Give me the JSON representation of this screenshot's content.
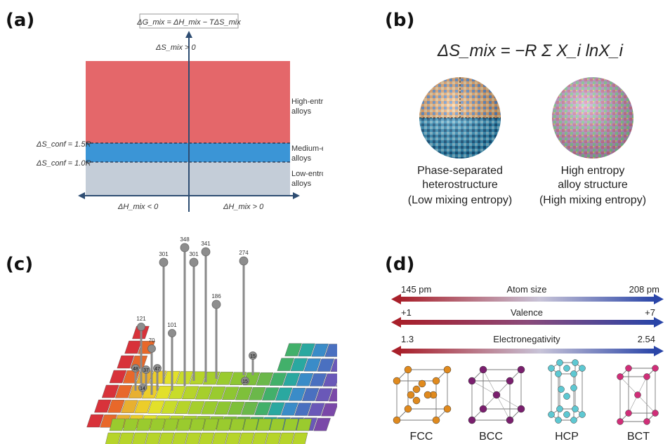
{
  "labels": {
    "a": "(a)",
    "b": "(b)",
    "c": "(c)",
    "d": "(d)"
  },
  "panel_a": {
    "formula_gmix": "ΔG_mix = ΔH_mix − TΔS_mix",
    "smix_label": "ΔS_mix > 0",
    "high_entropy": [
      "High-entropy",
      "alloys"
    ],
    "medium_entropy": [
      "Medium-entropy",
      "alloys"
    ],
    "low_entropy": [
      "Low-entropy",
      "alloys"
    ],
    "sconf_high": "ΔS_conf = 1.5R",
    "sconf_low": "ΔS_conf = 1.0R",
    "hmix_neg": "ΔH_mix < 0",
    "hmix_pos": "ΔH_mix > 0",
    "colors": {
      "high": "#e4676a",
      "medium": "#3b95d6",
      "low": "#c4cdd8",
      "axis": "#2e4d72"
    }
  },
  "panel_b": {
    "formula": "ΔS_mix = −R Σ X_i lnX_i",
    "left_caption": [
      "Phase-separated",
      "heterostructure",
      "(Low mixing entropy)"
    ],
    "right_caption": [
      "High entropy",
      "alloy structure",
      "(High mixing entropy)"
    ]
  },
  "panel_c": {
    "pins": [
      {
        "value": "348"
      },
      {
        "value": "341"
      },
      {
        "value": "301"
      },
      {
        "value": "301"
      },
      {
        "value": "274"
      },
      {
        "value": "186"
      },
      {
        "value": "121"
      },
      {
        "value": "101"
      },
      {
        "value": "70"
      },
      {
        "value": "48"
      },
      {
        "value": "37"
      },
      {
        "value": "47"
      },
      {
        "value": "14"
      },
      {
        "value": "15"
      },
      {
        "value": "15"
      }
    ]
  },
  "panel_d": {
    "atom_size": {
      "label": "Atom size",
      "left": "145 pm",
      "right": "208 pm"
    },
    "valence": {
      "label": "Valence",
      "left": "+1",
      "right": "+7"
    },
    "electronegativity": {
      "label": "Electronegativity",
      "left": "1.3",
      "right": "2.54"
    },
    "structures": [
      "FCC",
      "BCC",
      "HCP",
      "BCT"
    ],
    "colors": {
      "fcc": "#e08a1e",
      "bcc": "#7a1f6e",
      "hcp": "#5ec8d2",
      "bct": "#d02e78"
    }
  }
}
